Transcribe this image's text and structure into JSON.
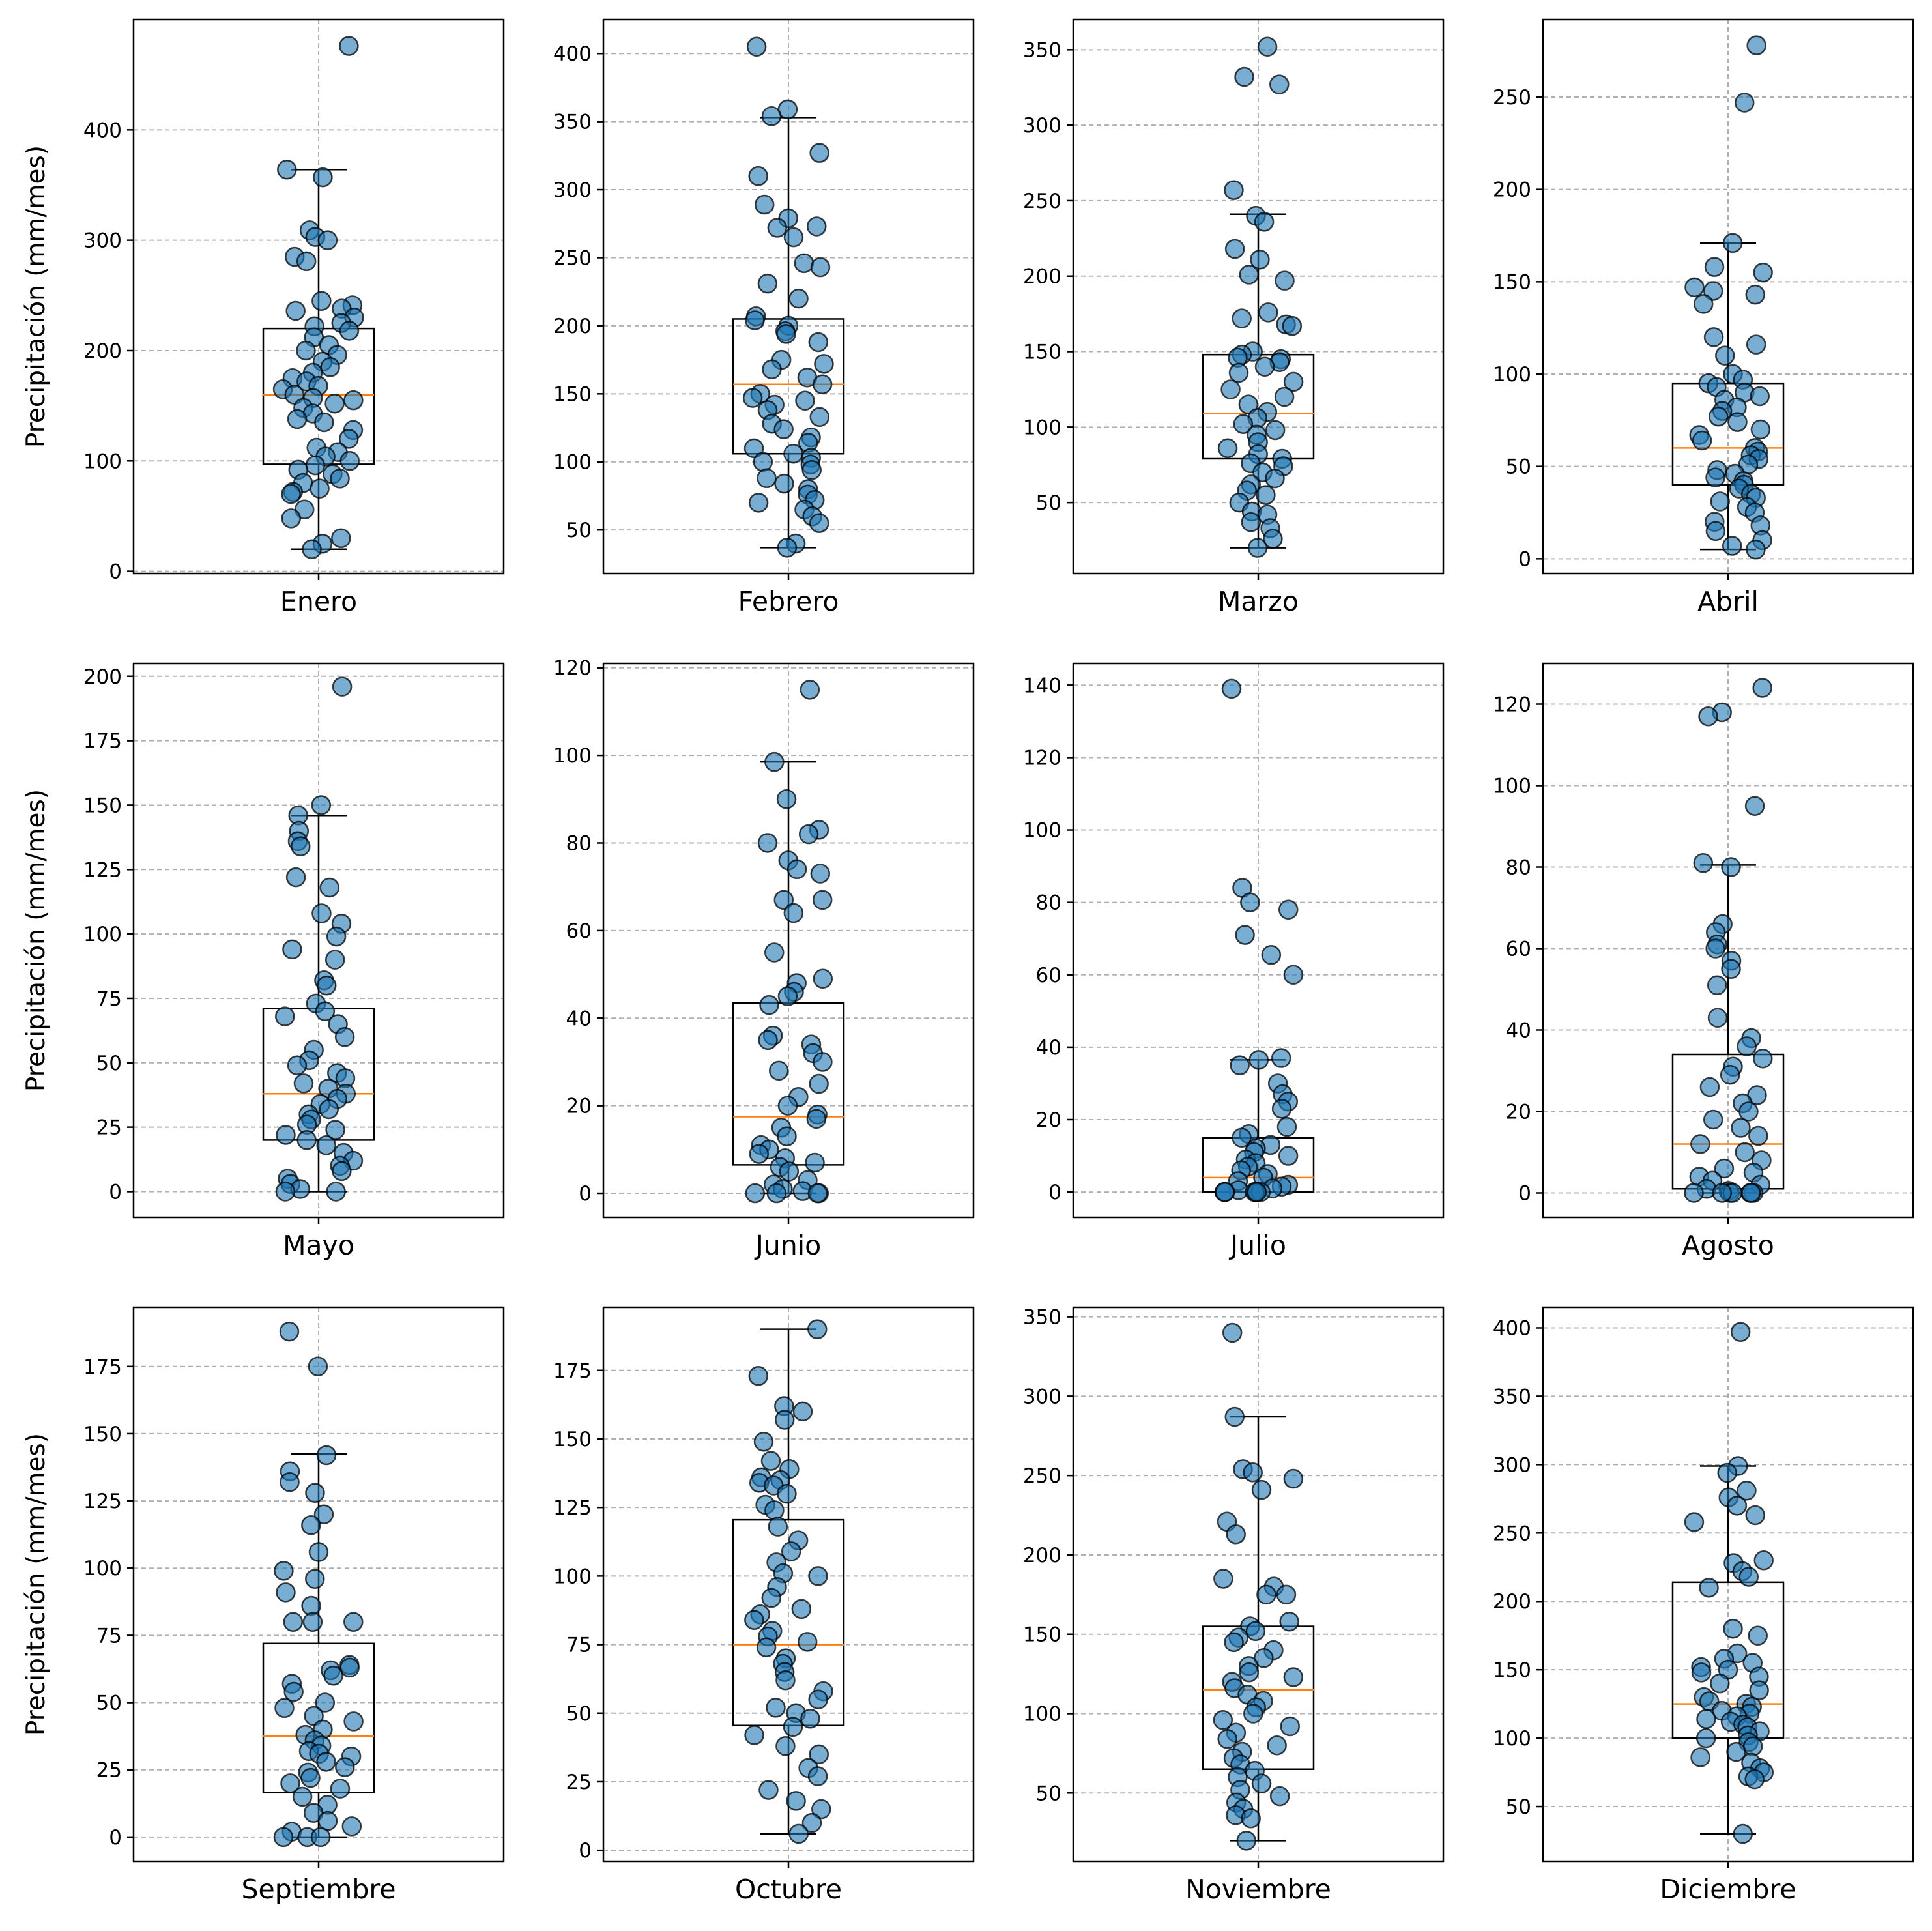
{
  "chart_data": [
    {
      "type": "box",
      "xlabel": "Enero",
      "ylabel": "Precipitación (mm/mes)",
      "ylim": [
        -2,
        500
      ],
      "yticks": [
        0,
        100,
        200,
        300,
        400
      ],
      "grid": true,
      "box": {
        "whisker_low": 20,
        "q1": 97,
        "median": 160,
        "q3": 220,
        "whisker_high": 364
      },
      "points": [
        476,
        364,
        357,
        309,
        303,
        300,
        285,
        281,
        245,
        241,
        238,
        236,
        230,
        225,
        222,
        218,
        212,
        205,
        200,
        196,
        190,
        185,
        180,
        175,
        172,
        168,
        165,
        160,
        157,
        155,
        152,
        148,
        143,
        138,
        135,
        128,
        120,
        112,
        108,
        104,
        100,
        96,
        92,
        88,
        84,
        80,
        75,
        72,
        70,
        56,
        48,
        30,
        25,
        20
      ]
    },
    {
      "type": "box",
      "xlabel": "Febrero",
      "ylabel": "",
      "ylim": [
        18,
        425
      ],
      "yticks": [
        50,
        100,
        150,
        200,
        250,
        300,
        350,
        400
      ],
      "grid": true,
      "box": {
        "whisker_low": 37,
        "q1": 106,
        "median": 157,
        "q3": 205,
        "whisker_high": 353
      },
      "points": [
        405,
        359,
        354,
        327,
        310,
        289,
        279,
        273,
        272,
        265,
        246,
        243,
        231,
        220,
        207,
        204,
        200,
        196,
        194,
        188,
        175,
        172,
        168,
        162,
        157,
        150,
        147,
        145,
        142,
        138,
        133,
        128,
        124,
        118,
        114,
        110,
        106,
        103,
        100,
        98,
        94,
        88,
        84,
        80,
        76,
        72,
        70,
        65,
        60,
        55,
        40,
        37
      ]
    },
    {
      "type": "box",
      "xlabel": "Marzo",
      "ylabel": "",
      "ylim": [
        3,
        370
      ],
      "yticks": [
        50,
        100,
        150,
        200,
        250,
        300,
        350
      ],
      "grid": true,
      "box": {
        "whisker_low": 20,
        "q1": 79,
        "median": 109,
        "q3": 148,
        "whisker_high": 241
      },
      "points": [
        352,
        332,
        327,
        257,
        240,
        236,
        218,
        211,
        201,
        197,
        176,
        172,
        168,
        167,
        150,
        148,
        146,
        145,
        143,
        140,
        136,
        130,
        125,
        120,
        115,
        110,
        106,
        102,
        98,
        95,
        90,
        86,
        82,
        79,
        76,
        74,
        70,
        66,
        62,
        58,
        55,
        50,
        44,
        42,
        37,
        33,
        26,
        20
      ]
    },
    {
      "type": "box",
      "xlabel": "Abril",
      "ylabel": "",
      "ylim": [
        -8,
        292
      ],
      "yticks": [
        0,
        50,
        100,
        150,
        200,
        250
      ],
      "grid": true,
      "box": {
        "whisker_low": 5,
        "q1": 40,
        "median": 60,
        "q3": 95,
        "whisker_high": 171
      },
      "points": [
        278,
        247,
        171,
        158,
        155,
        147,
        145,
        143,
        138,
        120,
        116,
        110,
        100,
        97,
        95,
        93,
        90,
        88,
        86,
        82,
        80,
        77,
        74,
        70,
        67,
        64,
        60,
        58,
        56,
        54,
        51,
        48,
        46,
        44,
        42,
        40,
        38,
        35,
        33,
        31,
        28,
        25,
        20,
        18,
        15,
        10,
        7,
        5
      ]
    },
    {
      "type": "box",
      "xlabel": "Mayo",
      "ylabel": "Precipitación (mm/mes)",
      "ylim": [
        -10,
        205
      ],
      "yticks": [
        0,
        25,
        50,
        75,
        100,
        125,
        150,
        175,
        200
      ],
      "grid": true,
      "box": {
        "whisker_low": 0,
        "q1": 20,
        "median": 38,
        "q3": 71,
        "whisker_high": 146
      },
      "points": [
        196,
        150,
        146,
        140,
        136,
        134,
        122,
        118,
        108,
        104,
        99,
        94,
        90,
        82,
        80,
        73,
        70,
        68,
        65,
        60,
        55,
        51,
        49,
        46,
        44,
        42,
        40,
        38,
        36,
        34,
        32,
        30,
        28,
        26,
        24,
        22,
        20,
        18,
        15,
        12,
        10,
        8,
        5,
        3,
        1,
        0,
        0
      ]
    },
    {
      "type": "box",
      "xlabel": "Junio",
      "ylabel": "",
      "ylim": [
        -5.5,
        121
      ],
      "yticks": [
        0,
        20,
        40,
        60,
        80,
        100,
        120
      ],
      "grid": true,
      "box": {
        "whisker_low": 0,
        "q1": 6.5,
        "median": 17.5,
        "q3": 43.5,
        "whisker_high": 98.5
      },
      "points": [
        115,
        98.5,
        90,
        83,
        82,
        80,
        76,
        74,
        73,
        67,
        67,
        64,
        55,
        49,
        48,
        46,
        45,
        43,
        36,
        35,
        34,
        32,
        30,
        28,
        25,
        22,
        20,
        18,
        17,
        15,
        13,
        11,
        10,
        9,
        8,
        7,
        6,
        5,
        3,
        2,
        1,
        0.5,
        0,
        0,
        0,
        0
      ]
    },
    {
      "type": "box",
      "xlabel": "Julio",
      "ylabel": "",
      "ylim": [
        -7,
        146
      ],
      "yticks": [
        0,
        20,
        40,
        60,
        80,
        100,
        120,
        140
      ],
      "grid": true,
      "box": {
        "whisker_low": 0,
        "q1": 0,
        "median": 4,
        "q3": 15,
        "whisker_high": 36.5
      },
      "points": [
        139,
        84,
        80,
        78,
        71,
        65.5,
        60,
        37,
        36.5,
        35,
        30,
        27,
        25,
        23,
        18,
        16,
        15,
        13,
        12,
        11,
        10,
        9,
        8,
        7,
        6,
        5,
        4,
        3,
        2,
        1.5,
        1,
        0.5,
        0,
        0,
        0,
        0,
        0,
        0,
        0,
        0
      ]
    },
    {
      "type": "box",
      "xlabel": "Agosto",
      "ylabel": "",
      "ylim": [
        -6,
        130
      ],
      "yticks": [
        0,
        20,
        40,
        60,
        80,
        100,
        120
      ],
      "grid": true,
      "box": {
        "whisker_low": 0,
        "q1": 1,
        "median": 12,
        "q3": 34,
        "whisker_high": 80.5
      },
      "points": [
        124,
        118,
        117,
        95,
        81,
        80,
        66,
        64,
        61,
        60,
        57,
        55,
        51,
        43,
        38,
        36,
        33,
        31,
        29,
        26,
        24,
        22,
        20,
        18,
        16,
        14,
        12,
        10,
        8,
        6,
        5,
        4,
        3,
        2,
        1,
        0.5,
        0,
        0,
        0,
        0,
        0,
        0,
        0
      ]
    },
    {
      "type": "box",
      "xlabel": "Septiembre",
      "ylabel": "Precipitación (mm/mes)",
      "ylim": [
        -9,
        197
      ],
      "yticks": [
        0,
        25,
        50,
        75,
        100,
        125,
        150,
        175
      ],
      "grid": true,
      "box": {
        "whisker_low": 0,
        "q1": 16.5,
        "median": 37.5,
        "q3": 72,
        "whisker_high": 142.5
      },
      "points": [
        188,
        175,
        142,
        136,
        132,
        128,
        120,
        116,
        106,
        99,
        96,
        91,
        86,
        80,
        80,
        80,
        64,
        63,
        62,
        60,
        57,
        54,
        50,
        48,
        45,
        43,
        40,
        38,
        36,
        34,
        32,
        31,
        30,
        28,
        26,
        24,
        22,
        20,
        18,
        15,
        12,
        9,
        6,
        4,
        2,
        0,
        0,
        0
      ]
    },
    {
      "type": "box",
      "xlabel": "Octubre",
      "ylabel": "",
      "ylim": [
        -4,
        198
      ],
      "yticks": [
        0,
        25,
        50,
        75,
        100,
        125,
        150,
        175
      ],
      "grid": true,
      "box": {
        "whisker_low": 6,
        "q1": 45.5,
        "median": 75,
        "q3": 120.5,
        "whisker_high": 190
      },
      "points": [
        190,
        173,
        162,
        160,
        157,
        149,
        142,
        139,
        136,
        135,
        134,
        133,
        130,
        126,
        124,
        118,
        113,
        109,
        105,
        101,
        100,
        96,
        92,
        88,
        86,
        84,
        80,
        78,
        76,
        74,
        70,
        68,
        65,
        62,
        58,
        55,
        52,
        50,
        48,
        45,
        42,
        38,
        35,
        30,
        27,
        22,
        18,
        15,
        10,
        6
      ]
    },
    {
      "type": "box",
      "xlabel": "Noviembre",
      "ylabel": "",
      "ylim": [
        7,
        356
      ],
      "yticks": [
        50,
        100,
        150,
        200,
        250,
        300,
        350
      ],
      "grid": true,
      "box": {
        "whisker_low": 20,
        "q1": 65,
        "median": 115,
        "q3": 155,
        "whisker_high": 287
      },
      "points": [
        340,
        287,
        254,
        252,
        248,
        241,
        221,
        213,
        185,
        180,
        175,
        175,
        158,
        155,
        152,
        148,
        145,
        140,
        135,
        130,
        126,
        123,
        120,
        116,
        112,
        108,
        104,
        100,
        96,
        92,
        88,
        84,
        80,
        76,
        72,
        68,
        64,
        60,
        56,
        52,
        48,
        44,
        40,
        36,
        34,
        20
      ]
    },
    {
      "type": "box",
      "xlabel": "Diciembre",
      "ylabel": "",
      "ylim": [
        10,
        415
      ],
      "yticks": [
        50,
        100,
        150,
        200,
        250,
        300,
        350,
        400
      ],
      "grid": true,
      "box": {
        "whisker_low": 30,
        "q1": 100,
        "median": 125,
        "q3": 214,
        "whisker_high": 299
      },
      "points": [
        397,
        299,
        294,
        281,
        276,
        270,
        263,
        258,
        230,
        228,
        222,
        218,
        210,
        180,
        175,
        162,
        158,
        155,
        152,
        150,
        148,
        145,
        140,
        135,
        130,
        127,
        125,
        123,
        120,
        118,
        116,
        114,
        112,
        110,
        108,
        105,
        102,
        100,
        97,
        94,
        90,
        86,
        82,
        78,
        75,
        72,
        70,
        30
      ]
    }
  ]
}
